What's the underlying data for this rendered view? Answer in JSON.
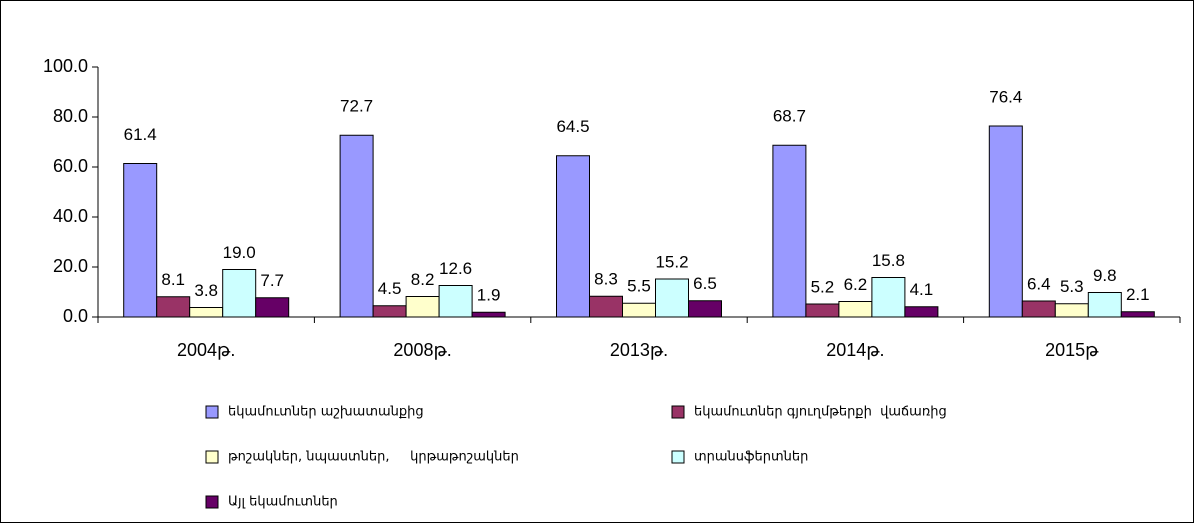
{
  "chart_data": {
    "type": "bar",
    "categories": [
      "2004թ.",
      "2008թ.",
      "2013թ.",
      "2014թ.",
      "2015թ"
    ],
    "series": [
      {
        "name": "եկամուտներ աշխատանքից",
        "color": "#9999ff",
        "values": [
          61.4,
          72.7,
          64.5,
          68.7,
          76.4
        ]
      },
      {
        "name": "եկամուտներ գյուղմթերքի  վաճառից",
        "color": "#993366",
        "values": [
          8.1,
          4.5,
          8.3,
          5.2,
          6.4
        ]
      },
      {
        "name": "թոշակներ, նպաստներ,     կրթաթոշակներ",
        "color": "#ffffcc",
        "values": [
          3.8,
          8.2,
          5.5,
          6.2,
          5.3
        ]
      },
      {
        "name": "տրանսֆերտներ",
        "color": "#ccffff",
        "values": [
          19.0,
          12.6,
          15.2,
          15.8,
          9.8
        ],
        "value_labels": [
          "19.0",
          "12.6",
          "15.2",
          "15.8",
          "9.8"
        ]
      },
      {
        "name": "Այլ եկամուտներ",
        "color": "#660066",
        "values": [
          7.7,
          1.9,
          6.5,
          4.1,
          2.1
        ]
      }
    ],
    "ylim": [
      0,
      100
    ],
    "yticks": [
      {
        "value": 0,
        "label": "0.0"
      },
      {
        "value": 20,
        "label": "20.0"
      },
      {
        "value": 40,
        "label": "40.0"
      },
      {
        "value": 60,
        "label": "60.0"
      },
      {
        "value": 80,
        "label": "80.0"
      },
      {
        "value": 100,
        "label": "100.0"
      }
    ],
    "grid": false
  }
}
